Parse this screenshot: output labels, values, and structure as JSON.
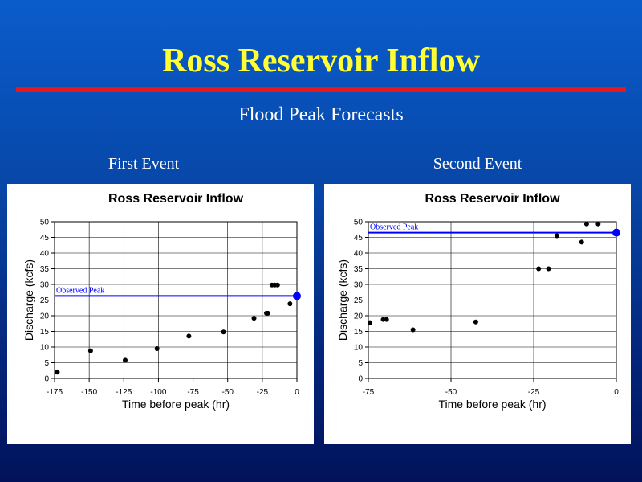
{
  "slide": {
    "title": "Ross Reservoir Inflow",
    "subtitle": "Flood Peak Forecasts",
    "event_labels": [
      "First Event",
      "Second Event"
    ]
  },
  "colors": {
    "title": "#ffff33",
    "rule": "#e8181a",
    "observed": "#0000ff",
    "forecast": "#000000"
  },
  "chart_data": [
    {
      "type": "scatter",
      "title": "Ross Reservoir Inflow",
      "xlabel": "Time before peak (hr)",
      "ylabel": "Discharge (kcfs)",
      "xlim": [
        -175,
        0
      ],
      "ylim": [
        0,
        50
      ],
      "xticks": [
        -175,
        -150,
        -125,
        -100,
        -75,
        -50,
        -25,
        0
      ],
      "yticks": [
        0,
        5,
        10,
        15,
        20,
        25,
        30,
        35,
        40,
        45,
        50
      ],
      "grid": true,
      "observed_peak": {
        "label": "Observed Peak",
        "value": 26.3
      },
      "series": [
        {
          "points": [
            {
              "x": -173,
              "y": 2
            },
            {
              "x": -149,
              "y": 8.8
            },
            {
              "x": -124,
              "y": 5.8
            },
            {
              "x": -101,
              "y": 9.5
            },
            {
              "x": -78,
              "y": 13.5
            },
            {
              "x": -53,
              "y": 14.8
            },
            {
              "x": -31,
              "y": 19.2
            },
            {
              "x": -22,
              "y": 20.8
            },
            {
              "x": -21,
              "y": 20.8
            },
            {
              "x": -18,
              "y": 29.8
            },
            {
              "x": -16,
              "y": 29.8
            },
            {
              "x": -14,
              "y": 29.8
            },
            {
              "x": -5,
              "y": 23.8
            }
          ]
        }
      ]
    },
    {
      "type": "scatter",
      "title": "Ross Reservoir Inflow",
      "xlabel": "Time before peak (hr)",
      "ylabel": "Discharge (kcfs)",
      "xlim": [
        -75,
        0
      ],
      "ylim": [
        0,
        50
      ],
      "xticks": [
        -75,
        -50,
        -25,
        0
      ],
      "yticks": [
        0,
        5,
        10,
        15,
        20,
        25,
        30,
        35,
        40,
        45,
        50
      ],
      "grid": true,
      "observed_peak": {
        "label": "Observed Peak",
        "value": 46.5
      },
      "series": [
        {
          "points": [
            {
              "x": -74.5,
              "y": 17.8
            },
            {
              "x": -70.5,
              "y": 18.8
            },
            {
              "x": -69.5,
              "y": 18.8
            },
            {
              "x": -61.5,
              "y": 15.5
            },
            {
              "x": -42.5,
              "y": 18
            },
            {
              "x": -23.5,
              "y": 35
            },
            {
              "x": -20.5,
              "y": 35
            },
            {
              "x": -18,
              "y": 45.5
            },
            {
              "x": -10.5,
              "y": 43.5
            },
            {
              "x": -9,
              "y": 49.3
            },
            {
              "x": -5.5,
              "y": 49.3
            }
          ]
        }
      ]
    }
  ]
}
